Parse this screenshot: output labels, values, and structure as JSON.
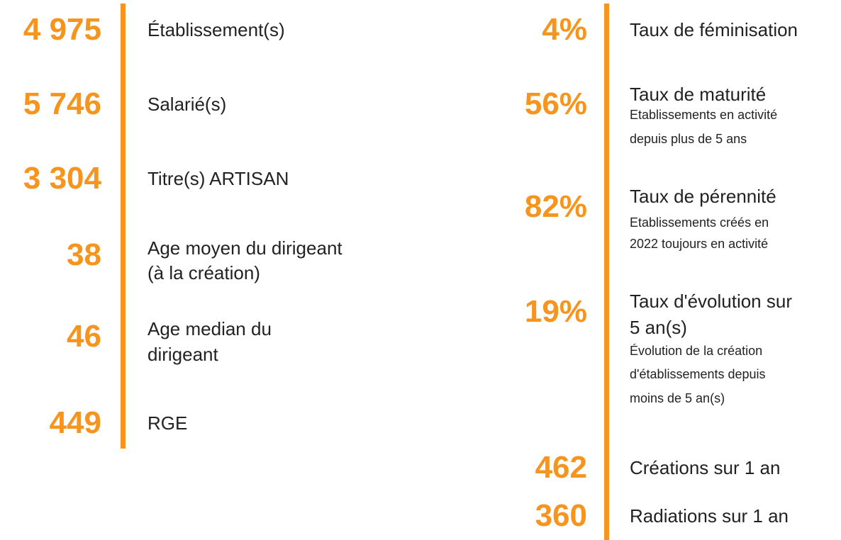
{
  "left": [
    {
      "number": "4 975",
      "label": [
        "Établissement(s)"
      ]
    },
    {
      "number": "5 746",
      "label": [
        "Salarié(s)"
      ]
    },
    {
      "number": "3 304",
      "label": [
        "Titre(s) ARTISAN"
      ]
    },
    {
      "number": "38",
      "label": [
        "Age moyen du dirigeant",
        "(à la création)"
      ]
    },
    {
      "number": "46",
      "label": [
        "Age median du",
        "dirigeant"
      ]
    },
    {
      "number": "449",
      "label": [
        "RGE"
      ]
    }
  ],
  "right": [
    {
      "number": "4%",
      "label": [
        "Taux de féminisation"
      ]
    },
    {
      "number": "56%",
      "label": [
        "Taux de maturité"
      ],
      "sub": [
        "Etablissements en activité",
        "depuis plus de 5 ans"
      ]
    },
    {
      "number": "82%",
      "label": [
        "Taux de pérennité"
      ],
      "sub": [
        "Etablissements créés en",
        "2022 toujours en activité"
      ]
    },
    {
      "number": "19%",
      "label": [
        "Taux d'évolution sur",
        "5 an(s)"
      ],
      "sub": [
        "Évolution de la création",
        "d'établissements depuis",
        "moins de 5 an(s)"
      ]
    },
    {
      "number": "462",
      "label": [
        "Créations sur 1 an"
      ]
    },
    {
      "number": "360",
      "label": [
        "Radiations sur 1 an"
      ]
    }
  ]
}
